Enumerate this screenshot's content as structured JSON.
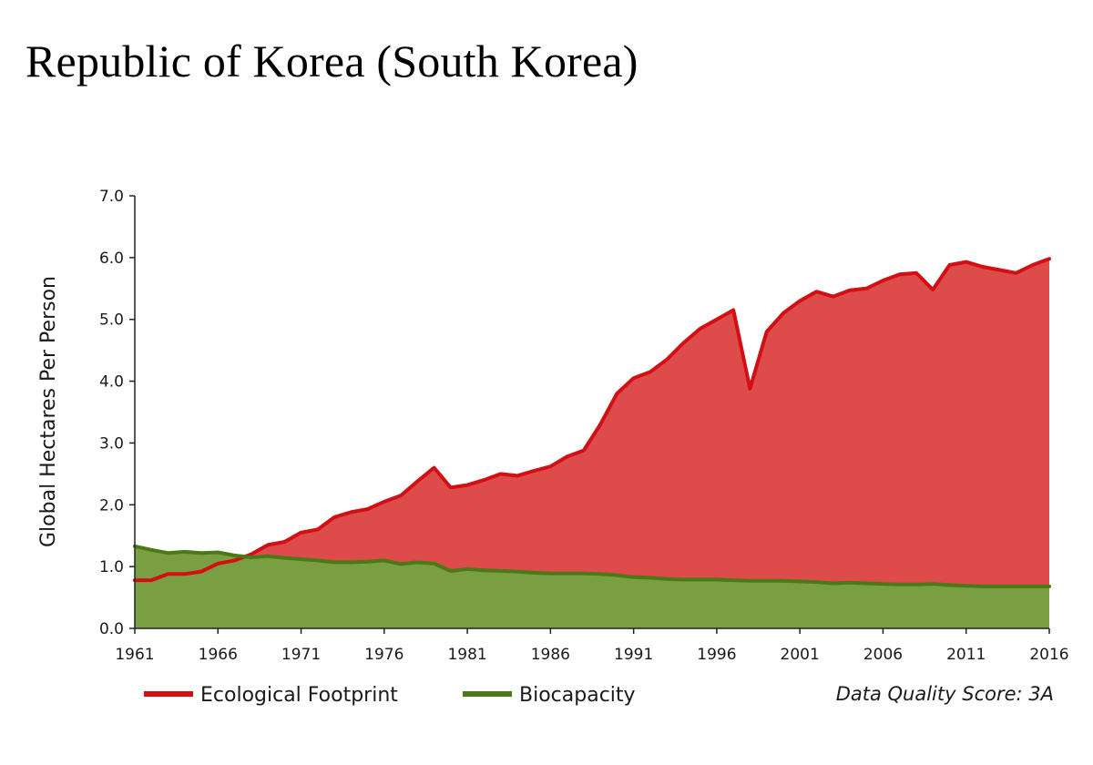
{
  "title": "Republic of Korea (South Korea)",
  "chart_data": {
    "type": "area",
    "ylabel": "Global Hectares Per Person",
    "xlabel": "",
    "xlim": [
      1961,
      2016
    ],
    "ylim": [
      0,
      7
    ],
    "x_ticks": [
      "1961",
      "1966",
      "1971",
      "1976",
      "1981",
      "1986",
      "1991",
      "1996",
      "2001",
      "2006",
      "2011",
      "2016"
    ],
    "y_ticks": [
      "0.0",
      "1.0",
      "2.0",
      "3.0",
      "4.0",
      "5.0",
      "6.0",
      "7.0"
    ],
    "grid": false,
    "legend_position": "bottom",
    "x": [
      1961,
      1962,
      1963,
      1964,
      1965,
      1966,
      1967,
      1968,
      1969,
      1970,
      1971,
      1972,
      1973,
      1974,
      1975,
      1976,
      1977,
      1978,
      1979,
      1980,
      1981,
      1982,
      1983,
      1984,
      1985,
      1986,
      1987,
      1988,
      1989,
      1990,
      1991,
      1992,
      1993,
      1994,
      1995,
      1996,
      1997,
      1998,
      1999,
      2000,
      2001,
      2002,
      2003,
      2004,
      2005,
      2006,
      2007,
      2008,
      2009,
      2010,
      2011,
      2012,
      2013,
      2014,
      2015,
      2016
    ],
    "series": [
      {
        "name": "Ecological Footprint",
        "color": "#d40f14",
        "fill": "#dd4b4b",
        "values": [
          0.78,
          0.78,
          0.88,
          0.88,
          0.92,
          1.05,
          1.1,
          1.2,
          1.35,
          1.4,
          1.55,
          1.6,
          1.8,
          1.88,
          1.93,
          2.05,
          2.15,
          2.38,
          2.6,
          2.28,
          2.32,
          2.4,
          2.5,
          2.47,
          2.55,
          2.62,
          2.78,
          2.88,
          3.3,
          3.8,
          4.05,
          4.15,
          4.35,
          4.62,
          4.85,
          5.0,
          5.15,
          3.88,
          4.8,
          5.1,
          5.3,
          5.45,
          5.37,
          5.47,
          5.5,
          5.63,
          5.73,
          5.75,
          5.48,
          5.88,
          5.93,
          5.85,
          5.8,
          5.75,
          5.88,
          5.98
        ]
      },
      {
        "name": "Biocapacity",
        "color": "#4a7a16",
        "fill": "#7a9e42",
        "values": [
          1.33,
          1.27,
          1.22,
          1.24,
          1.22,
          1.23,
          1.18,
          1.15,
          1.17,
          1.14,
          1.12,
          1.1,
          1.07,
          1.07,
          1.08,
          1.1,
          1.04,
          1.07,
          1.05,
          0.93,
          0.96,
          0.94,
          0.93,
          0.92,
          0.9,
          0.89,
          0.89,
          0.89,
          0.88,
          0.86,
          0.83,
          0.82,
          0.8,
          0.79,
          0.79,
          0.79,
          0.78,
          0.77,
          0.77,
          0.77,
          0.76,
          0.75,
          0.73,
          0.74,
          0.73,
          0.72,
          0.71,
          0.71,
          0.72,
          0.7,
          0.69,
          0.68,
          0.68,
          0.68,
          0.68,
          0.68
        ]
      }
    ],
    "annotation": "Data Quality Score: 3A"
  }
}
